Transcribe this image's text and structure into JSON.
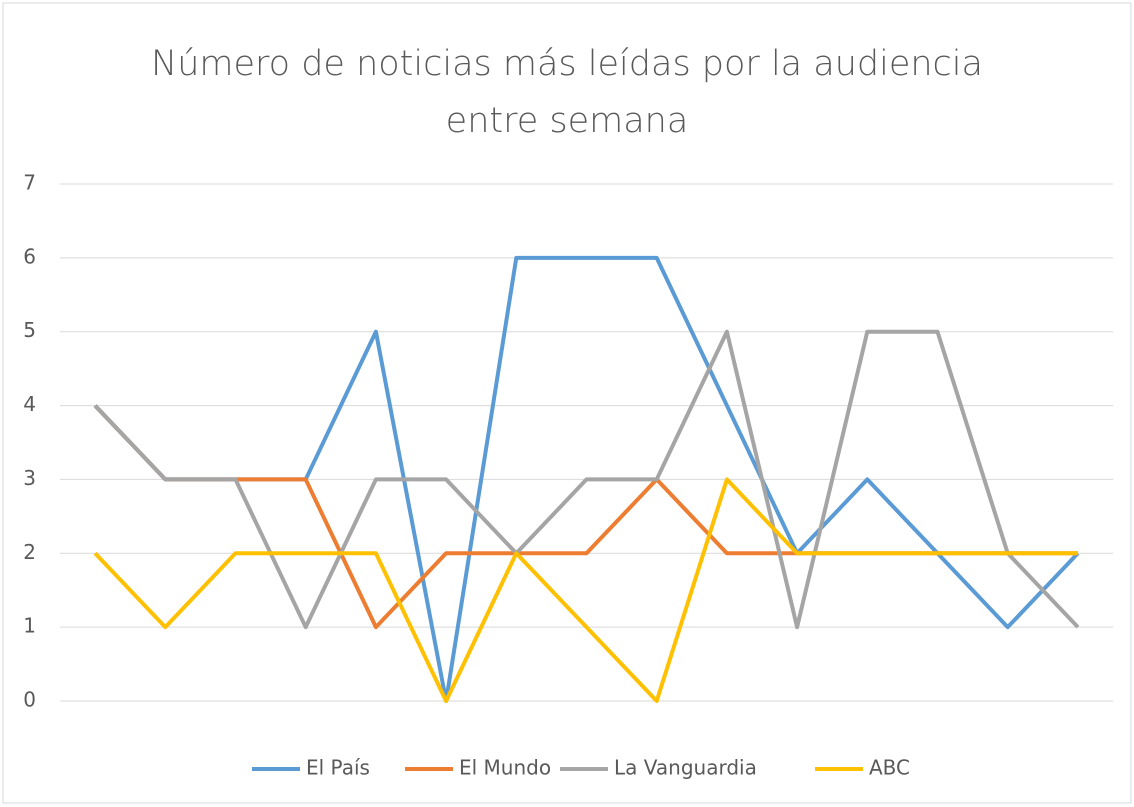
{
  "chart_data": {
    "type": "line",
    "title": "Número de noticias más leídas por la audiencia entre semana",
    "categories": [
      null,
      null,
      null,
      null,
      null,
      null,
      null,
      null,
      null,
      null,
      null,
      null,
      null,
      null,
      null
    ],
    "series": [
      {
        "name": "El País",
        "color": "#5b9bd5",
        "values": [
          4,
          3,
          3,
          3,
          5,
          0,
          6,
          6,
          6,
          4,
          2,
          3,
          2,
          1,
          2
        ]
      },
      {
        "name": "El Mundo",
        "color": "#ed7d31",
        "values": [
          4,
          3,
          3,
          3,
          1,
          2,
          2,
          2,
          3,
          2,
          2,
          2,
          2,
          2,
          2
        ]
      },
      {
        "name": "La Vanguardia",
        "color": "#a5a5a5",
        "values": [
          4,
          3,
          3,
          1,
          3,
          3,
          2,
          3,
          3,
          5,
          1,
          5,
          5,
          2,
          1
        ]
      },
      {
        "name": "ABC",
        "color": "#ffc000",
        "values": [
          2,
          1,
          2,
          2,
          2,
          0,
          2,
          1,
          0,
          3,
          2,
          2,
          2,
          2,
          2
        ]
      }
    ],
    "ylim": [
      0,
      7
    ],
    "yticks": [
      0,
      1,
      2,
      3,
      4,
      5,
      6,
      7
    ],
    "grid": true,
    "legend": "bottom"
  }
}
